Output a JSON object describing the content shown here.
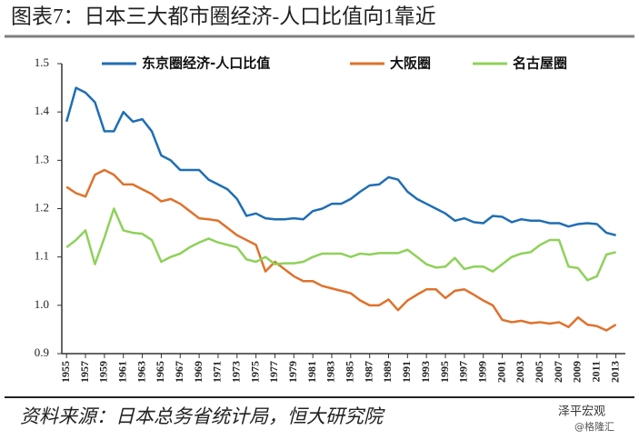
{
  "chart_data": {
    "type": "line",
    "title": "图表7：日本三大都市圈经济-人口比值向1靠近",
    "source": "资料来源：日本总务省统计局，恒大研究院",
    "watermark": [
      "泽平宏观",
      "@格隆汇"
    ],
    "x": [
      1955,
      1956,
      1957,
      1958,
      1959,
      1960,
      1961,
      1962,
      1963,
      1964,
      1965,
      1966,
      1967,
      1968,
      1969,
      1970,
      1971,
      1972,
      1973,
      1974,
      1975,
      1976,
      1977,
      1978,
      1979,
      1980,
      1981,
      1982,
      1983,
      1984,
      1985,
      1986,
      1987,
      1988,
      1989,
      1990,
      1991,
      1992,
      1993,
      1994,
      1995,
      1996,
      1997,
      1998,
      1999,
      2000,
      2001,
      2002,
      2003,
      2004,
      2005,
      2006,
      2007,
      2008,
      2009,
      2010,
      2011,
      2012,
      2013
    ],
    "series": [
      {
        "name": "东京圈经济-人口比值",
        "color": "#1f6eb4",
        "values": [
          1.38,
          1.45,
          1.44,
          1.42,
          1.36,
          1.36,
          1.4,
          1.38,
          1.385,
          1.36,
          1.31,
          1.3,
          1.28,
          1.28,
          1.28,
          1.26,
          1.25,
          1.24,
          1.22,
          1.185,
          1.19,
          1.18,
          1.178,
          1.178,
          1.18,
          1.178,
          1.195,
          1.2,
          1.21,
          1.21,
          1.22,
          1.235,
          1.248,
          1.25,
          1.265,
          1.26,
          1.235,
          1.22,
          1.21,
          1.2,
          1.19,
          1.175,
          1.18,
          1.172,
          1.17,
          1.185,
          1.183,
          1.172,
          1.178,
          1.175,
          1.175,
          1.17,
          1.17,
          1.163,
          1.168,
          1.17,
          1.168,
          1.15,
          1.145
        ]
      },
      {
        "name": "大阪圈",
        "color": "#e0712b",
        "values": [
          1.245,
          1.232,
          1.225,
          1.27,
          1.28,
          1.27,
          1.25,
          1.25,
          1.24,
          1.23,
          1.215,
          1.22,
          1.21,
          1.195,
          1.18,
          1.178,
          1.175,
          1.16,
          1.145,
          1.135,
          1.125,
          1.07,
          1.09,
          1.075,
          1.06,
          1.05,
          1.05,
          1.04,
          1.035,
          1.03,
          1.025,
          1.01,
          1.0,
          1.0,
          1.012,
          0.99,
          1.01,
          1.022,
          1.033,
          1.033,
          1.015,
          1.03,
          1.033,
          1.022,
          1.01,
          1.0,
          0.97,
          0.965,
          0.968,
          0.963,
          0.965,
          0.962,
          0.965,
          0.955,
          0.975,
          0.96,
          0.957,
          0.948,
          0.96
        ]
      },
      {
        "name": "名古屋圈",
        "color": "#8fd15a",
        "values": [
          1.12,
          1.135,
          1.155,
          1.085,
          1.14,
          1.2,
          1.155,
          1.15,
          1.148,
          1.135,
          1.09,
          1.1,
          1.107,
          1.12,
          1.13,
          1.138,
          1.13,
          1.125,
          1.12,
          1.095,
          1.09,
          1.1,
          1.085,
          1.087,
          1.087,
          1.09,
          1.1,
          1.107,
          1.107,
          1.107,
          1.1,
          1.107,
          1.105,
          1.108,
          1.108,
          1.108,
          1.115,
          1.1,
          1.085,
          1.078,
          1.08,
          1.098,
          1.075,
          1.08,
          1.08,
          1.07,
          1.085,
          1.1,
          1.107,
          1.11,
          1.125,
          1.135,
          1.135,
          1.08,
          1.077,
          1.052,
          1.06,
          1.105,
          1.11
        ]
      }
    ],
    "xlim": [
      1954.5,
      2014
    ],
    "xticks": [
      1955,
      1957,
      1959,
      1961,
      1963,
      1965,
      1967,
      1969,
      1971,
      1973,
      1975,
      1977,
      1979,
      1981,
      1983,
      1985,
      1987,
      1989,
      1991,
      1993,
      1995,
      1997,
      1999,
      2001,
      2003,
      2005,
      2007,
      2009,
      2011,
      2013
    ],
    "ylim": [
      0.9,
      1.5
    ],
    "yticks": [
      0.9,
      {
        "value": 1,
        "label": "1.0"
      },
      1.1,
      1.2,
      1.3,
      1.4,
      1.5
    ],
    "grid": false,
    "legend": "top"
  }
}
